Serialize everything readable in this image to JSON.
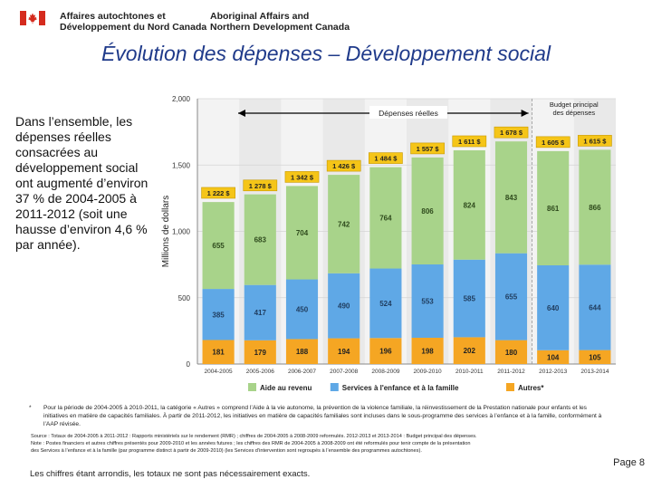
{
  "header": {
    "dept_fr_line1": "Affaires autochtones et",
    "dept_fr_line2": "Développement du Nord Canada",
    "dept_en_line1": "Aboriginal Affairs and",
    "dept_en_line2": "Northern Development Canada"
  },
  "slide_title": "Évolution des dépenses – Développement social",
  "summary": "Dans l’ensemble, les dépenses réelles consacrées au développement social ont augmenté d’environ 37 % de 2004-2005 à 2011-2012 (soit une hausse d’environ 4,6 % par année).",
  "chart_data": {
    "type": "bar",
    "stacked": true,
    "ylabel": "Millions de dollars",
    "ylim": [
      0,
      2000
    ],
    "yticks": [
      "0",
      "500",
      "1,000",
      "1,500",
      "2,000"
    ],
    "ytick_values": [
      0,
      500,
      1000,
      1500,
      2000
    ],
    "categories": [
      "2004-2005",
      "2005-2006",
      "2006-2007",
      "2007-2008",
      "2008-2009",
      "2009-2010",
      "2010-2011",
      "2011-2012",
      "2012-2013",
      "2013-2014"
    ],
    "series": [
      {
        "name": "Autres*",
        "color": "#f5a623",
        "values": [
          181,
          179,
          188,
          194,
          196,
          198,
          202,
          180,
          104,
          105
        ],
        "labels": [
          "181",
          "179",
          "188",
          "194",
          "196",
          "198",
          "202",
          "180",
          "104",
          "105"
        ]
      },
      {
        "name": "Services à l'enfance et à la famille",
        "color": "#5fa8e6",
        "values": [
          385,
          417,
          450,
          490,
          524,
          553,
          585,
          655,
          640,
          644
        ],
        "labels": [
          "385",
          "417",
          "450",
          "490",
          "524",
          "553",
          "585",
          "655",
          "640",
          "644"
        ]
      },
      {
        "name": "Aide au revenu",
        "color": "#a8d38a",
        "values": [
          655,
          683,
          704,
          742,
          764,
          806,
          824,
          843,
          861,
          866
        ],
        "labels": [
          "655",
          "683",
          "704",
          "742",
          "764",
          "806",
          "824",
          "843",
          "861",
          "866"
        ]
      }
    ],
    "totals": [
      1222,
      1278,
      1342,
      1426,
      1484,
      1557,
      1611,
      1678,
      1605,
      1615
    ],
    "total_labels": [
      "1 222 $",
      "1 278 $",
      "1 342 $",
      "1 426 $",
      "1 484 $",
      "1 557 $",
      "1 611 $",
      "1 678 $",
      "1 605 $",
      "1 615 $"
    ],
    "annotation_actual": "Dépenses réelles",
    "annotation_budget": "Budget principal des dépenses",
    "legend": [
      "Aide au revenu",
      "Services à l'enfance et à la famille",
      "Autres*"
    ]
  },
  "footnote": {
    "marker": "*",
    "text": "Pour la période de 2004-2005 à 2010-2011, la catégorie « Autres » comprend l’Aide à la vie autonome, la prévention de la violence familiale, la réinvestissement de la Prestation nationale pour enfants et les initiatives en matière de capacités familiales. À partir de 2011-2012, les initiatives en matière de capacités familiales sont incluses dans le sous-programme des services à l’enfance et à la famille, conformément à l’AAP révisée."
  },
  "source": {
    "line1": "Source : Totaux de 2004-2005 à 2011-2012 : Rapports ministériels sur le rendement (RMR) ; chiffres de 2004-2005 à 2008-2009 reformulés. 2012-2013 et 2013-2014 : Budget principal des dépenses.",
    "line2": "Note : Postes financiers et autres chiffres présentés pour 2009-2010 et les années futures ; les chiffres des RMR de 2004-2005 à 2008-2009 ont été reformulés pour tenir compte de la présentation",
    "line3": "des Services à l’enfance et à la famille (par programme distinct à partir de 2009-2010) (les Services d’intervention sont regroupés à l’ensemble des programmes autochtones)."
  },
  "rounding_note": "Les chiffres étant arrondis, les totaux ne sont pas nécessairement exacts.",
  "page_number": "Page 8"
}
